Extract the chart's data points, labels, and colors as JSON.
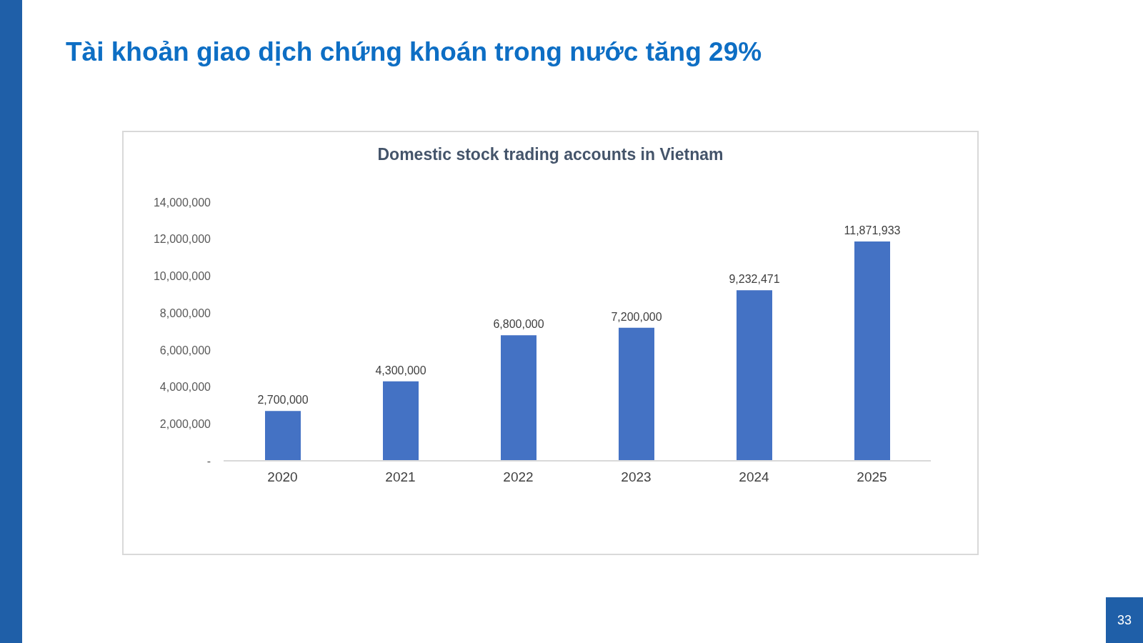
{
  "chart_data": {
    "type": "bar",
    "title": "Tài khoản giao dịch chứng khoán trong nước tăng 29%",
    "subtitle": "Domestic stock trading accounts in Vietnam",
    "annotations": [
      "33"
    ],
    "categories": [
      "2020",
      "2021",
      "2022",
      "2023",
      "2024",
      "2025"
    ],
    "values": [
      2700000,
      4300000,
      6800000,
      7200000,
      9232471,
      11871933
    ],
    "value_labels": [
      "2,700,000",
      "4,300,000",
      "6,800,000",
      "7,200,000",
      "9,232,471",
      "11,871,933"
    ],
    "color": "#4472c4",
    "ylim": [
      0,
      14000000
    ],
    "yticks": [
      {
        "value": 0,
        "label": "-"
      },
      {
        "value": 2000000,
        "label": "2,000,000"
      },
      {
        "value": 4000000,
        "label": "4,000,000"
      },
      {
        "value": 6000000,
        "label": "6,000,000"
      },
      {
        "value": 8000000,
        "label": "8,000,000"
      },
      {
        "value": 10000000,
        "label": "10,000,000"
      },
      {
        "value": 12000000,
        "label": "12,000,000"
      },
      {
        "value": 14000000,
        "label": "14,000,000"
      }
    ],
    "grid": false
  }
}
